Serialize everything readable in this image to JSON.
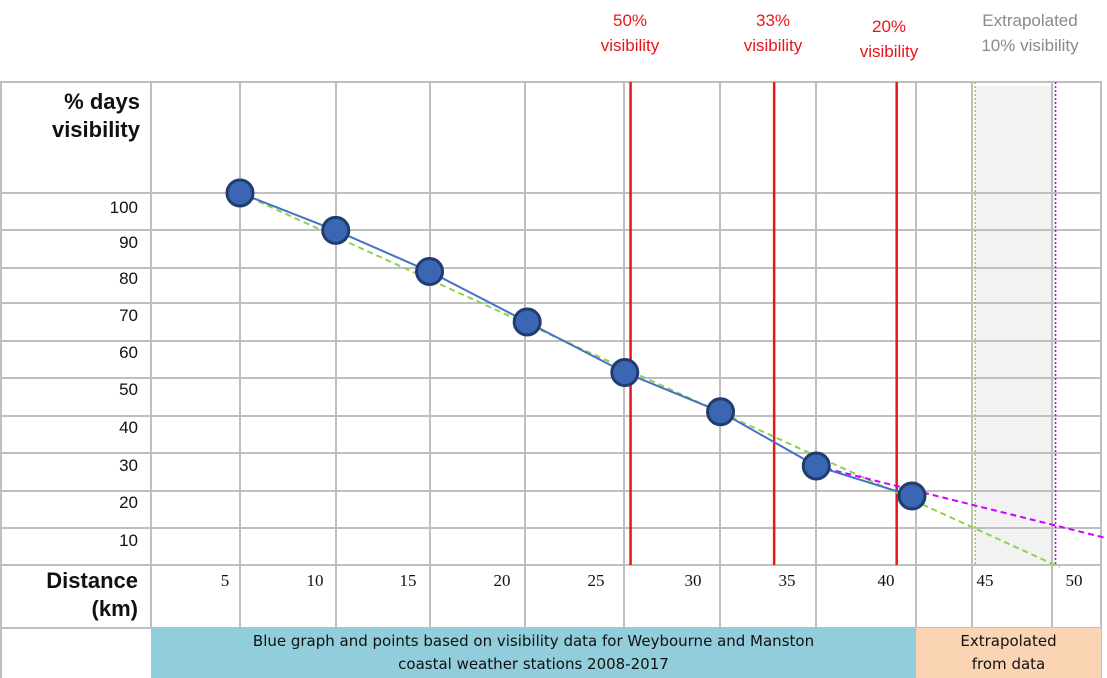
{
  "chart_data": {
    "type": "line",
    "ylabel": "% days visibility",
    "xlabel": "Distance (km)",
    "x_ticks": [
      "5",
      "10",
      "15",
      "20",
      "25",
      "30",
      "35",
      "40",
      "45",
      "50"
    ],
    "y_ticks": [
      "100",
      "90",
      "80",
      "70",
      "60",
      "50",
      "40",
      "30",
      "20",
      "10"
    ],
    "xlim": [
      1.5,
      52
    ],
    "ylim": [
      0,
      130
    ],
    "series": [
      {
        "color": "#4472c4",
        "marker_fill": "#3b66b3",
        "x": [
          5.4,
          10.4,
          15.3,
          20.4,
          25.5,
          30.5,
          35.5,
          40.5
        ],
        "y": [
          100,
          90,
          79,
          65.5,
          52,
          41.5,
          27,
          19
        ]
      }
    ],
    "trend_line": {
      "color": "#92d050",
      "style": "dashed",
      "x": [
        5.4,
        48.2
      ],
      "y": [
        100,
        0
      ]
    },
    "extrapolation_line": {
      "color": "#cc00ff",
      "style": "dashed",
      "x": [
        35.5,
        52
      ],
      "y": [
        27,
        6
      ]
    },
    "vertical_markers": [
      {
        "x": 25.8,
        "color": "#e8161b",
        "label_line1": "50%",
        "label_line2": "visibility"
      },
      {
        "x": 33.3,
        "color": "#e8161b",
        "label_line1": "33%",
        "label_line2": "visibility"
      },
      {
        "x": 39.7,
        "color": "#e8161b",
        "label_line1": "20%",
        "label_line2": "visibility"
      }
    ],
    "extrapolated_marker": {
      "x_from": 43.8,
      "x_to": 48.0,
      "left_color": "#92d050",
      "right_color": "#cc00ff",
      "band_color": "#f2f2f2",
      "label_line1": "Extrapolated",
      "label_line2": "10% visibility"
    },
    "grid": true
  },
  "header": {
    "m50_a": "50%",
    "m50_b": "visibility",
    "m33_a": "33%",
    "m33_b": "visibility",
    "m20_a": "20%",
    "m20_b": "visibility",
    "ext_a": "Extrapolated",
    "ext_b": "10% visibility"
  },
  "axis_titles": {
    "y_line1": "% days",
    "y_line2": "visibility",
    "x_line1": "Distance",
    "x_line2": "(km)"
  },
  "footer": {
    "blue_line1": "Blue graph and points based on visibility data for Weybourne and Manston",
    "blue_line2": "coastal weather stations 2008-2017",
    "peach_line1": "Extrapolated",
    "peach_line2": "from data"
  }
}
